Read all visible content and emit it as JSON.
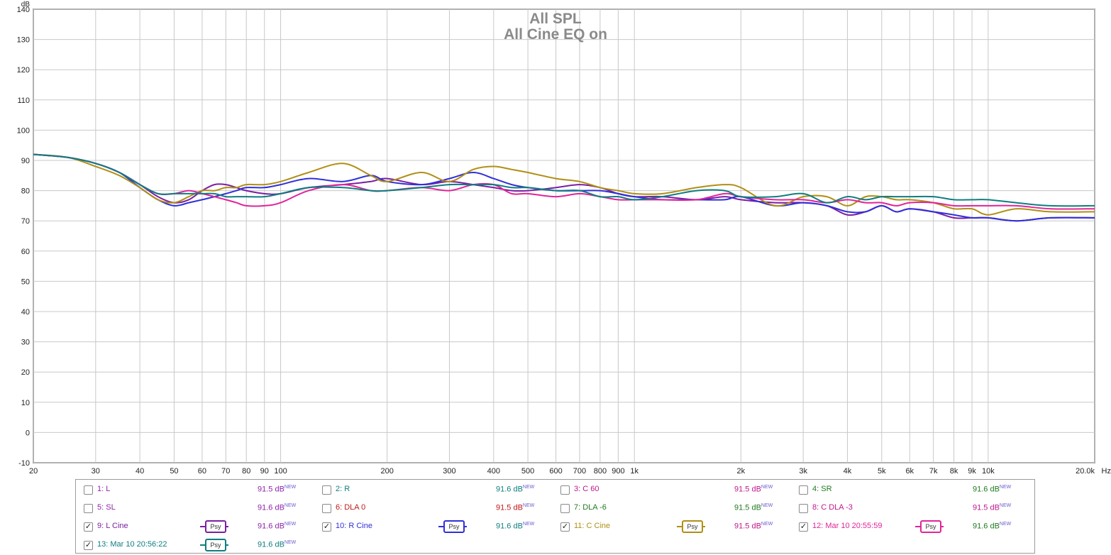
{
  "chart_data": {
    "type": "line",
    "title": "All SPL",
    "subtitle": "All Cine EQ on",
    "ylabel": "dB",
    "xlabel": "Hz",
    "x_scale": "log",
    "xlim": [
      20,
      20000
    ],
    "ylim": [
      -10,
      140
    ],
    "y_ticks": [
      "140",
      "130",
      "120",
      "110",
      "100",
      "90",
      "80",
      "70",
      "60",
      "50",
      "40",
      "30",
      "20",
      "10",
      "0",
      "-10"
    ],
    "x_ticks": [
      {
        "v": 20,
        "label": "20"
      },
      {
        "v": 30,
        "label": "30"
      },
      {
        "v": 40,
        "label": "40"
      },
      {
        "v": 50,
        "label": "50"
      },
      {
        "v": 60,
        "label": "60"
      },
      {
        "v": 70,
        "label": "70"
      },
      {
        "v": 80,
        "label": "80"
      },
      {
        "v": 90,
        "label": "90"
      },
      {
        "v": 100,
        "label": "100"
      },
      {
        "v": 200,
        "label": "200"
      },
      {
        "v": 300,
        "label": "300"
      },
      {
        "v": 400,
        "label": "400"
      },
      {
        "v": 500,
        "label": "500"
      },
      {
        "v": 600,
        "label": "600"
      },
      {
        "v": 700,
        "label": "700"
      },
      {
        "v": 800,
        "label": "800"
      },
      {
        "v": 900,
        "label": "900"
      },
      {
        "v": 1000,
        "label": "1k"
      },
      {
        "v": 2000,
        "label": "2k"
      },
      {
        "v": 3000,
        "label": "3k"
      },
      {
        "v": 4000,
        "label": "4k"
      },
      {
        "v": 5000,
        "label": "5k"
      },
      {
        "v": 6000,
        "label": "6k"
      },
      {
        "v": 7000,
        "label": "7k"
      },
      {
        "v": 8000,
        "label": "8k"
      },
      {
        "v": 9000,
        "label": "9k"
      },
      {
        "v": 10000,
        "label": "10k"
      },
      {
        "v": 20000,
        "label": "20.0k"
      }
    ],
    "grid": true,
    "series": [
      {
        "name": "9: L Cine",
        "color": "#7b1fa2",
        "x": [
          20,
          25,
          30,
          35,
          40,
          45,
          50,
          55,
          60,
          65,
          70,
          75,
          80,
          90,
          100,
          120,
          150,
          180,
          200,
          250,
          300,
          350,
          400,
          450,
          500,
          600,
          700,
          800,
          900,
          1000,
          1200,
          1500,
          1800,
          2000,
          2500,
          3000,
          3500,
          4000,
          4500,
          5000,
          5500,
          6000,
          7000,
          8000,
          9000,
          10000,
          12000,
          15000,
          20000
        ],
        "y": [
          92,
          91,
          89,
          86,
          82,
          78,
          76,
          77,
          80,
          82,
          82,
          81,
          80,
          79,
          79,
          81,
          82,
          83,
          84,
          82,
          83,
          82,
          81,
          80,
          80,
          81,
          82,
          81,
          79,
          78,
          78,
          77,
          78,
          77,
          76,
          76,
          75,
          72,
          73,
          75,
          73,
          74,
          73,
          71,
          71,
          71,
          70,
          71,
          71
        ]
      },
      {
        "name": "10: R Cine",
        "color": "#3030d8",
        "x": [
          20,
          25,
          30,
          35,
          40,
          45,
          50,
          55,
          60,
          65,
          70,
          75,
          80,
          90,
          100,
          120,
          150,
          180,
          200,
          250,
          300,
          350,
          400,
          450,
          500,
          600,
          700,
          800,
          900,
          1000,
          1200,
          1500,
          1800,
          2000,
          2500,
          3000,
          3500,
          4000,
          4500,
          5000,
          5500,
          6000,
          7000,
          8000,
          9000,
          10000,
          12000,
          15000,
          20000
        ],
        "y": [
          92,
          91,
          89,
          86,
          81,
          77,
          75,
          76,
          77,
          78,
          79,
          80,
          81,
          81,
          82,
          84,
          83,
          85,
          83,
          82,
          84,
          86,
          84,
          82,
          81,
          80,
          80,
          80,
          79,
          78,
          77,
          77,
          77,
          78,
          75,
          76,
          75,
          73,
          73,
          75,
          73,
          74,
          73,
          72,
          71,
          71,
          70,
          71,
          71
        ]
      },
      {
        "name": "11: C Cine",
        "color": "#b08f15",
        "x": [
          20,
          25,
          30,
          35,
          40,
          45,
          50,
          55,
          60,
          65,
          70,
          75,
          80,
          90,
          100,
          120,
          150,
          180,
          200,
          250,
          300,
          350,
          400,
          450,
          500,
          600,
          700,
          800,
          900,
          1000,
          1200,
          1500,
          1800,
          2000,
          2500,
          3000,
          3500,
          4000,
          4500,
          5000,
          5500,
          6000,
          7000,
          8000,
          9000,
          10000,
          12000,
          15000,
          20000
        ],
        "y": [
          92,
          91,
          88,
          85,
          81,
          77,
          76,
          78,
          80,
          80,
          81,
          81,
          82,
          82,
          83,
          86,
          89,
          85,
          83,
          86,
          83,
          87,
          88,
          87,
          86,
          84,
          83,
          81,
          80,
          79,
          79,
          81,
          82,
          81,
          75,
          78,
          78,
          75,
          78,
          78,
          77,
          77,
          76,
          74,
          74,
          72,
          74,
          73,
          73
        ]
      },
      {
        "name": "12: Mar 10 20:55:59",
        "color": "#e0249a",
        "x": [
          20,
          25,
          30,
          35,
          40,
          45,
          50,
          55,
          60,
          65,
          70,
          75,
          80,
          90,
          100,
          120,
          150,
          180,
          200,
          250,
          300,
          350,
          400,
          450,
          500,
          600,
          700,
          800,
          900,
          1000,
          1200,
          1500,
          1800,
          2000,
          2500,
          3000,
          3500,
          4000,
          4500,
          5000,
          5500,
          6000,
          7000,
          8000,
          9000,
          10000,
          12000,
          15000,
          20000
        ],
        "y": [
          92,
          91,
          89,
          86,
          82,
          79,
          79,
          80,
          79,
          78,
          77,
          76,
          75,
          75,
          76,
          80,
          82,
          80,
          80,
          81,
          80,
          82,
          82,
          79,
          79,
          78,
          79,
          78,
          77,
          77,
          77,
          77,
          79,
          78,
          77,
          77,
          76,
          77,
          76,
          76,
          75,
          76,
          76,
          75,
          75,
          75,
          75,
          74,
          74
        ]
      },
      {
        "name": "13: Mar 10 20:56:22",
        "color": "#0f7d80",
        "x": [
          20,
          25,
          30,
          35,
          40,
          45,
          50,
          55,
          60,
          65,
          70,
          75,
          80,
          90,
          100,
          120,
          150,
          180,
          200,
          250,
          300,
          350,
          400,
          450,
          500,
          600,
          700,
          800,
          900,
          1000,
          1200,
          1500,
          1800,
          2000,
          2500,
          3000,
          3500,
          4000,
          4500,
          5000,
          5500,
          6000,
          7000,
          8000,
          9000,
          10000,
          12000,
          15000,
          20000
        ],
        "y": [
          92,
          91,
          89,
          86,
          82,
          79,
          79,
          79,
          79,
          79,
          78,
          78,
          78,
          78,
          79,
          81,
          81,
          80,
          80,
          81,
          82,
          82,
          82,
          81,
          81,
          80,
          80,
          78,
          78,
          77,
          78,
          80,
          80,
          78,
          78,
          79,
          76,
          78,
          77,
          78,
          78,
          78,
          78,
          77,
          77,
          77,
          76,
          75,
          75
        ]
      }
    ]
  },
  "legend": [
    {
      "name": "1: L",
      "spl": "91.5 dB",
      "tag": "NEW",
      "checked": false,
      "color": "#8e24aa",
      "spl_color": "#8e24aa",
      "psy": false
    },
    {
      "name": "2: R",
      "spl": "91.6 dB",
      "tag": "NEW",
      "checked": false,
      "color": "#0f7d80",
      "spl_color": "#0f7d80",
      "psy": false
    },
    {
      "name": "3: C 60",
      "spl": "91.5 dB",
      "tag": "NEW",
      "checked": false,
      "color": "#c0178a",
      "spl_color": "#c0178a",
      "psy": false
    },
    {
      "name": "4: SR",
      "spl": "91.6 dB",
      "tag": "NEW",
      "checked": false,
      "color": "#1f7a1f",
      "spl_color": "#1f7a1f",
      "psy": false
    },
    {
      "name": "5: SL",
      "spl": "91.6 dB",
      "tag": "NEW",
      "checked": false,
      "color": "#8e24aa",
      "spl_color": "#8e24aa",
      "psy": false
    },
    {
      "name": "6: DLA 0",
      "spl": "91.5 dB",
      "tag": "NEW",
      "checked": false,
      "color": "#c01818",
      "spl_color": "#c01818",
      "psy": false
    },
    {
      "name": "7: DLA -6",
      "spl": "91.5 dB",
      "tag": "NEW",
      "checked": false,
      "color": "#1f7a1f",
      "spl_color": "#1f7a1f",
      "psy": false
    },
    {
      "name": "8: C DLA -3",
      "spl": "91.5 dB",
      "tag": "NEW",
      "checked": false,
      "color": "#c0178a",
      "spl_color": "#c0178a",
      "psy": false
    },
    {
      "name": "9: L Cine",
      "spl": "91.6 dB",
      "tag": "NEW",
      "checked": true,
      "color": "#7b1fa2",
      "spl_color": "#8e24aa",
      "psy": true,
      "psy_label": "Psy"
    },
    {
      "name": "10: R Cine",
      "spl": "91.6 dB",
      "tag": "NEW",
      "checked": true,
      "color": "#3030d8",
      "spl_color": "#0f7d80",
      "psy": true,
      "psy_label": "Psy"
    },
    {
      "name": "11: C Cine",
      "spl": "91.5 dB",
      "tag": "NEW",
      "checked": true,
      "color": "#b08f15",
      "spl_color": "#c0178a",
      "psy": true,
      "psy_label": "Psy"
    },
    {
      "name": "12: Mar 10 20:55:59",
      "spl": "91.6 dB",
      "tag": "NEW",
      "checked": true,
      "color": "#e0249a",
      "spl_color": "#1f7a1f",
      "psy": true,
      "psy_label": "Psy"
    },
    {
      "name": "13: Mar 10 20:56:22",
      "spl": "91.6 dB",
      "tag": "NEW",
      "checked": true,
      "color": "#0f7d80",
      "spl_color": "#0f7d80",
      "psy": true,
      "psy_label": "Psy"
    }
  ]
}
